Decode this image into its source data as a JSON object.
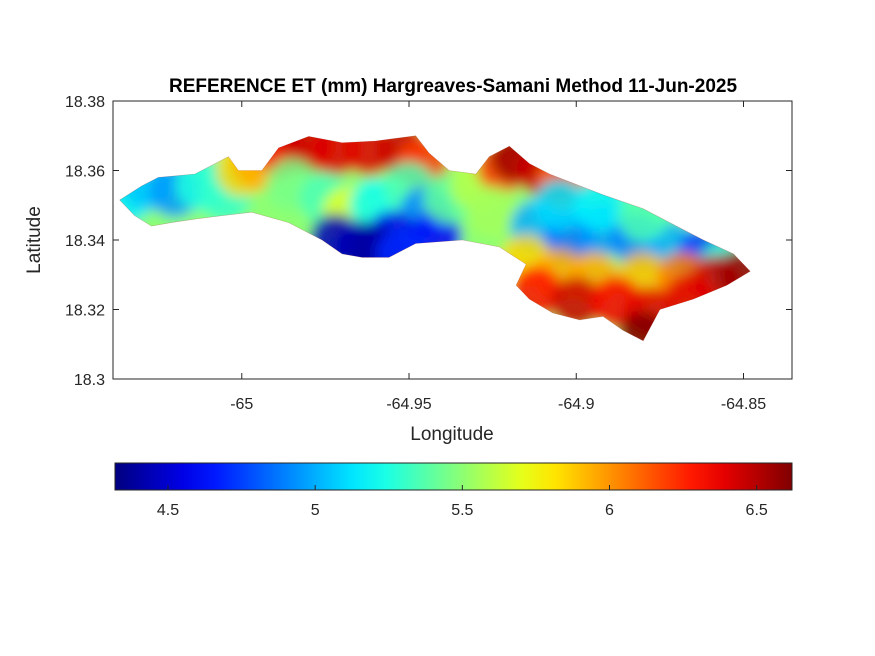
{
  "chart_data": {
    "type": "heatmap",
    "title": "REFERENCE ET (mm) Hargreaves-Samani Method  11-Jun-2025",
    "xlabel": "Longitude",
    "ylabel": "Latitude",
    "xlim": [
      -65.0385,
      -64.8355
    ],
    "ylim": [
      18.3,
      18.38
    ],
    "xticks": [
      -65,
      -64.95,
      -64.9,
      -64.85
    ],
    "xtick_labels": [
      "-65",
      "-64.95",
      "-64.9",
      "-64.85"
    ],
    "yticks": [
      18.3,
      18.32,
      18.34,
      18.36,
      18.38
    ],
    "ytick_labels": [
      "18.3",
      "18.32",
      "18.34",
      "18.36",
      "18.38"
    ],
    "grid": false,
    "colormap": "jet",
    "colorbar": {
      "orientation": "horizontal",
      "location": "below",
      "range": [
        4.32,
        6.62
      ],
      "ticks": [
        4.5,
        5,
        5.5,
        6,
        6.5
      ],
      "tick_labels": [
        "4.5",
        "5",
        "5.5",
        "6",
        "6.5"
      ]
    },
    "background_color": "#ffffff",
    "land_mask_outline": [
      [
        -65.0365,
        18.3515
      ],
      [
        -65.03,
        18.3555
      ],
      [
        -65.025,
        18.358
      ],
      [
        -65.014,
        18.359
      ],
      [
        -65.008,
        18.362
      ],
      [
        -65.004,
        18.364
      ],
      [
        -65.001,
        18.36
      ],
      [
        -64.994,
        18.36
      ],
      [
        -64.989,
        18.3665
      ],
      [
        -64.98,
        18.3698
      ],
      [
        -64.97,
        18.368
      ],
      [
        -64.96,
        18.3685
      ],
      [
        -64.948,
        18.37
      ],
      [
        -64.944,
        18.365
      ],
      [
        -64.938,
        18.36
      ],
      [
        -64.93,
        18.359
      ],
      [
        -64.926,
        18.364
      ],
      [
        -64.92,
        18.367
      ],
      [
        -64.914,
        18.362
      ],
      [
        -64.908,
        18.359
      ],
      [
        -64.9,
        18.356
      ],
      [
        -64.892,
        18.353
      ],
      [
        -64.88,
        18.349
      ],
      [
        -64.87,
        18.344
      ],
      [
        -64.862,
        18.34
      ],
      [
        -64.853,
        18.336
      ],
      [
        -64.848,
        18.331
      ],
      [
        -64.855,
        18.327
      ],
      [
        -64.865,
        18.323
      ],
      [
        -64.875,
        18.32
      ],
      [
        -64.88,
        18.311
      ],
      [
        -64.886,
        18.314
      ],
      [
        -64.892,
        18.318
      ],
      [
        -64.899,
        18.317
      ],
      [
        -64.907,
        18.319
      ],
      [
        -64.914,
        18.323
      ],
      [
        -64.918,
        18.327
      ],
      [
        -64.915,
        18.333
      ],
      [
        -64.923,
        18.338
      ],
      [
        -64.934,
        18.34
      ],
      [
        -64.948,
        18.339
      ],
      [
        -64.956,
        18.335
      ],
      [
        -64.964,
        18.335
      ],
      [
        -64.97,
        18.336
      ],
      [
        -64.976,
        18.34
      ],
      [
        -64.986,
        18.345
      ],
      [
        -64.997,
        18.348
      ],
      [
        -65.006,
        18.347
      ],
      [
        -65.014,
        18.346
      ],
      [
        -65.021,
        18.345
      ],
      [
        -65.027,
        18.344
      ],
      [
        -65.032,
        18.347
      ]
    ]
  }
}
